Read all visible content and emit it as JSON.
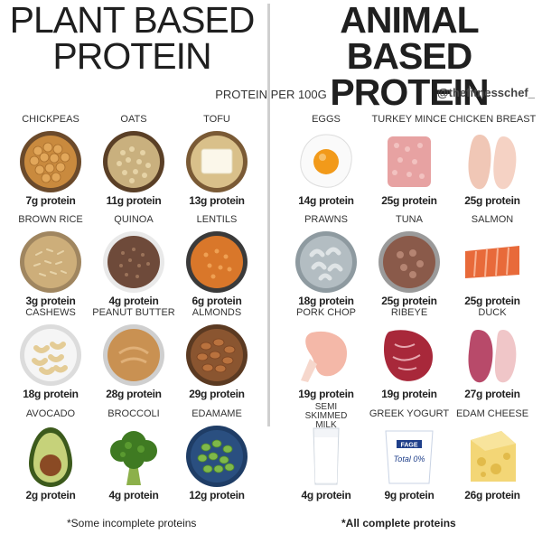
{
  "titles": {
    "plant": [
      "PLANT BASED",
      "PROTEIN"
    ],
    "animal": [
      "ANIMAL BASED",
      "PROTEIN"
    ]
  },
  "subtitle": "PROTEIN PER 100G",
  "handle": "@thefitnesschef_",
  "plant_items": [
    {
      "name": "CHICKPEAS",
      "protein": "7g protein",
      "icon": "chickpeas-icon"
    },
    {
      "name": "OATS",
      "protein": "11g protein",
      "icon": "oats-icon"
    },
    {
      "name": "TOFU",
      "protein": "13g protein",
      "icon": "tofu-icon"
    },
    {
      "name": "BROWN RICE",
      "protein": "3g protein",
      "icon": "brown-rice-icon"
    },
    {
      "name": "QUINOA",
      "protein": "4g protein",
      "icon": "quinoa-icon"
    },
    {
      "name": "LENTILS",
      "protein": "6g protein",
      "icon": "lentils-icon"
    },
    {
      "name": "CASHEWS",
      "protein": "18g protein",
      "icon": "cashews-icon"
    },
    {
      "name": "PEANUT BUTTER",
      "protein": "28g protein",
      "icon": "peanut-butter-icon"
    },
    {
      "name": "ALMONDS",
      "protein": "29g protein",
      "icon": "almonds-icon"
    },
    {
      "name": "AVOCADO",
      "protein": "2g protein",
      "icon": "avocado-icon"
    },
    {
      "name": "BROCCOLI",
      "protein": "4g protein",
      "icon": "broccoli-icon"
    },
    {
      "name": "EDAMAME",
      "protein": "12g protein",
      "icon": "edamame-icon"
    }
  ],
  "animal_items": [
    {
      "name": "EGGS",
      "protein": "14g protein",
      "icon": "egg-icon"
    },
    {
      "name": "TURKEY MINCE",
      "protein": "25g protein",
      "icon": "turkey-mince-icon"
    },
    {
      "name": "CHICKEN BREAST",
      "protein": "25g protein",
      "icon": "chicken-breast-icon"
    },
    {
      "name": "PRAWNS",
      "protein": "18g protein",
      "icon": "prawns-icon"
    },
    {
      "name": "TUNA",
      "protein": "25g protein",
      "icon": "tuna-icon"
    },
    {
      "name": "SALMON",
      "protein": "25g protein",
      "icon": "salmon-icon"
    },
    {
      "name": "PORK CHOP",
      "protein": "19g protein",
      "icon": "pork-chop-icon"
    },
    {
      "name": "RIBEYE",
      "protein": "19g protein",
      "icon": "ribeye-icon"
    },
    {
      "name": "DUCK",
      "protein": "27g protein",
      "icon": "duck-icon"
    },
    {
      "name": "SEMI SKIMMED MILK",
      "protein": "4g protein",
      "icon": "milk-icon"
    },
    {
      "name": "GREEK YOGURT",
      "protein": "9g protein",
      "icon": "greek-yogurt-icon"
    },
    {
      "name": "EDAM CHEESE",
      "protein": "26g protein",
      "icon": "edam-cheese-icon"
    }
  ],
  "yogurt_label": {
    "brand": "FAGE",
    "text": "Total 0%"
  },
  "footnotes": {
    "plant": "*Some incomplete proteins",
    "animal": "*All complete proteins"
  }
}
